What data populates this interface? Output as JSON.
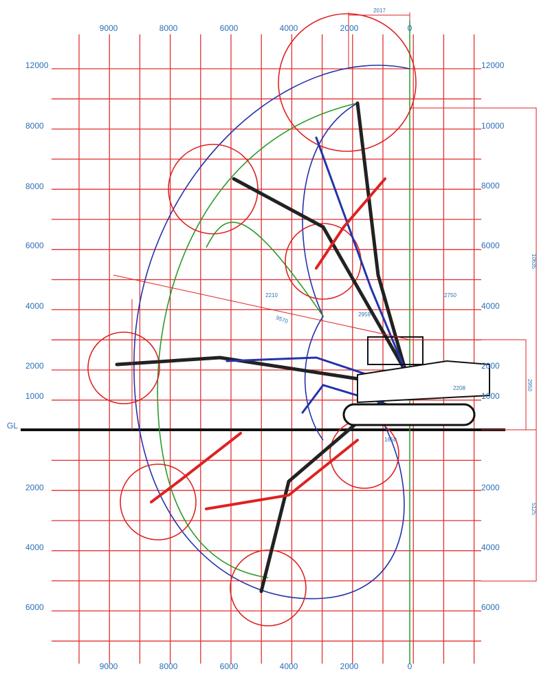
{
  "x_labels_top": [
    "9000",
    "8000",
    "6000",
    "4000",
    "2000",
    "0"
  ],
  "x_labels_bottom": [
    "9000",
    "8000",
    "6000",
    "4000",
    "2000",
    "0"
  ],
  "y_labels_left": [
    "12000",
    "8000",
    "8000",
    "6000",
    "4000",
    "2000",
    "1000",
    "GL",
    "2000",
    "4000",
    "6000"
  ],
  "y_labels_right": [
    "12000",
    "10000",
    "8000",
    "6000",
    "4000",
    "2000",
    "1000",
    "2000",
    "4000",
    "6000"
  ],
  "dimensions": [
    "2017",
    "10635",
    "2950",
    "5125",
    "1650",
    "2750",
    "2959",
    "2210",
    "9570",
    "2208"
  ]
}
